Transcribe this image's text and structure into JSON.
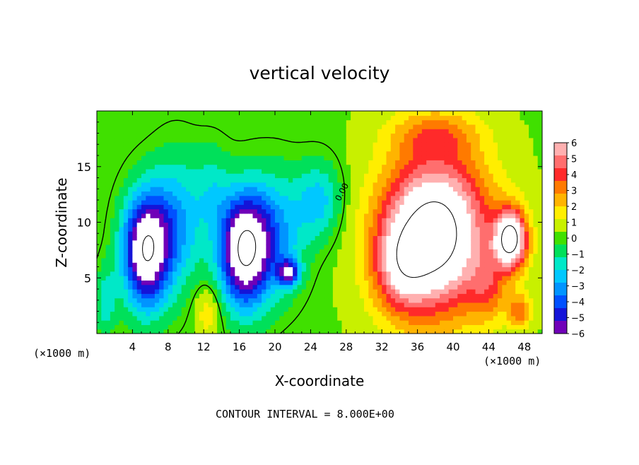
{
  "chart_data": {
    "type": "heatmap",
    "title": "vertical velocity",
    "xlabel": "X-coordinate",
    "ylabel": "Z-coordinate",
    "x_units_label": "(×1000 m)",
    "x_ticks": [
      4,
      8,
      12,
      16,
      20,
      24,
      28,
      32,
      36,
      40,
      44,
      48
    ],
    "y_ticks": [
      5,
      10,
      15
    ],
    "xlim": [
      0,
      50
    ],
    "ylim": [
      0,
      20
    ],
    "colorbar": {
      "ticks": [
        6,
        5,
        4,
        3,
        2,
        1,
        0,
        -1,
        -2,
        -3,
        -4,
        -5,
        -6
      ],
      "tick_labels": [
        "6",
        "5",
        "4",
        "3",
        "2",
        "1",
        "0",
        "−1",
        "−2",
        "−3",
        "−4",
        "−5",
        "−6"
      ],
      "colors": [
        "#ffb0b0",
        "#ff6e6e",
        "#ff2a2a",
        "#ff7a00",
        "#ffb400",
        "#ffee00",
        "#c8f000",
        "#40e000",
        "#00e05a",
        "#00e8c8",
        "#00c8ff",
        "#0094ff",
        "#0050ff",
        "#1414d8",
        "#7000b8"
      ]
    },
    "contour_label": "0.00",
    "contour_interval_text": "CONTOUR INTERVAL =  8.000E+00",
    "features": [
      {
        "kind": "downdraft",
        "x": 5.5,
        "z": 7.5,
        "w": -8
      },
      {
        "kind": "downdraft",
        "x": 16.5,
        "z": 7.5,
        "w": -8
      },
      {
        "kind": "downdraft",
        "x": 21.5,
        "z": 5.5,
        "w": -5
      },
      {
        "kind": "updraft",
        "x": 38,
        "z": 9,
        "w": 9
      },
      {
        "kind": "updraft",
        "x": 46.5,
        "z": 8.5,
        "w": 8
      }
    ]
  }
}
